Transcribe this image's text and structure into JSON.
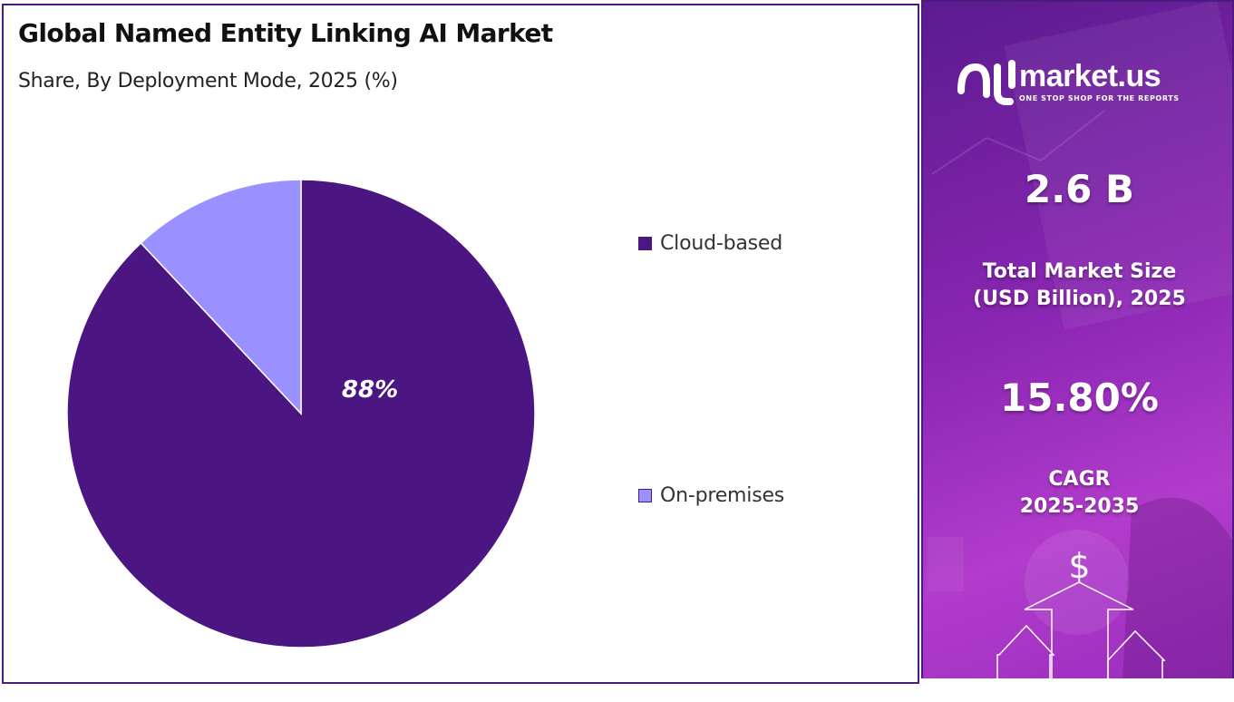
{
  "header": {
    "title": "Global Named Entity Linking AI Market",
    "subtitle": "Share, By Deployment Mode, 2025 (%)"
  },
  "chart_data": {
    "type": "pie",
    "categories": [
      "Cloud-based",
      "On-premises"
    ],
    "values": [
      88,
      12
    ],
    "colors": [
      "#4b1681",
      "#9b90ff"
    ],
    "data_labels": [
      "88%",
      ""
    ],
    "legend_placement": "right"
  },
  "side_panel": {
    "logo": {
      "name": "market.us",
      "tagline": "ONE STOP SHOP FOR THE REPORTS"
    },
    "market_size": {
      "value": "2.6 B",
      "label_line1": "Total Market Size",
      "label_line2": "(USD Billion), 2025"
    },
    "cagr": {
      "value": "15.80%",
      "label_line1": "CAGR",
      "label_line2": "2025-2035"
    },
    "dollar_symbol": "$",
    "icons": [
      "market-us-logo-icon",
      "dollar-icon",
      "up-arrow-icon"
    ]
  }
}
